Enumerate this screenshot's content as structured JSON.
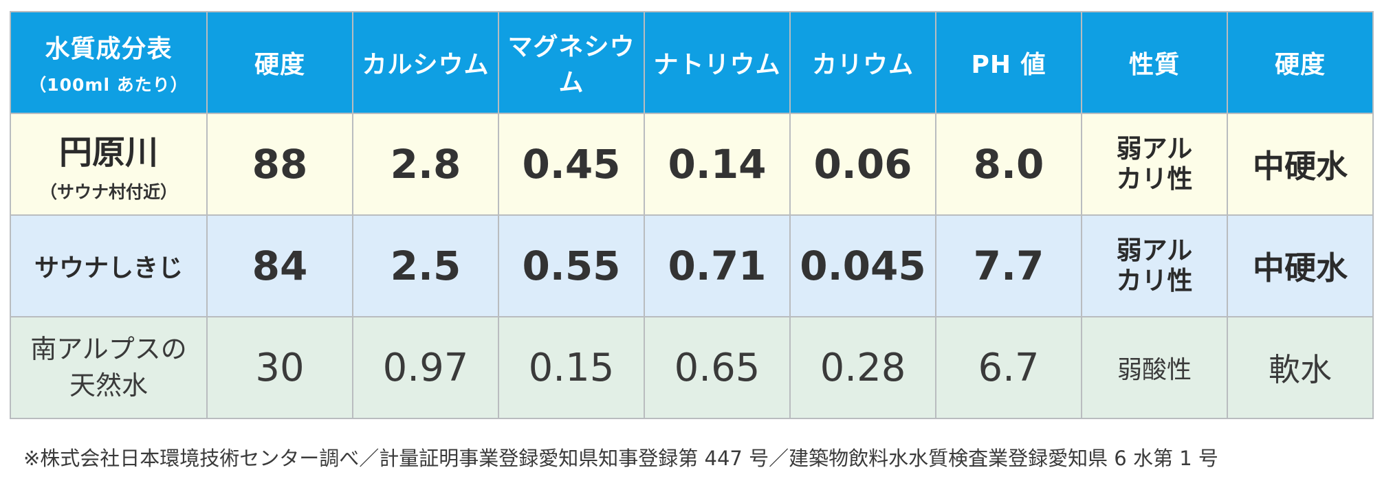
{
  "header": {
    "title": "水質成分表",
    "subtitle": "（100ml あたり）",
    "columns": [
      "硬度",
      "カルシウム",
      "マグネシウム",
      "ナトリウム",
      "カリウム",
      "PH 値",
      "性質",
      "硬度"
    ]
  },
  "rows": [
    {
      "name": "円原川",
      "name_sub": "（サウナ村付近）",
      "hardness": "88",
      "calcium": "2.8",
      "magnesium": "0.45",
      "sodium": "0.14",
      "potassium": "0.06",
      "ph": "8.0",
      "nature": "弱アルカリ性",
      "hardness_class": "中硬水"
    },
    {
      "name": "サウナしきじ",
      "hardness": "84",
      "calcium": "2.5",
      "magnesium": "0.55",
      "sodium": "0.71",
      "potassium": "0.045",
      "ph": "7.7",
      "nature": "弱アルカリ性",
      "hardness_class": "中硬水"
    },
    {
      "name": "南アルプスの天然水",
      "hardness": "30",
      "calcium": "0.97",
      "magnesium": "0.15",
      "sodium": "0.65",
      "potassium": "0.28",
      "ph": "6.7",
      "nature": "弱酸性",
      "hardness_class": "軟水"
    }
  ],
  "footnote": "※株式会社日本環境技術センター調べ／計量証明事業登録愛知県知事登録第 447 号／建築物飲料水水質検査業登録愛知県 6 水第 1 号",
  "colors": {
    "header_bg": "#0f9fe3",
    "row1_bg": "#fdfde8",
    "row2_bg": "#dcecfa",
    "row3_bg": "#e2efe6",
    "border": "#b9bcbf"
  }
}
